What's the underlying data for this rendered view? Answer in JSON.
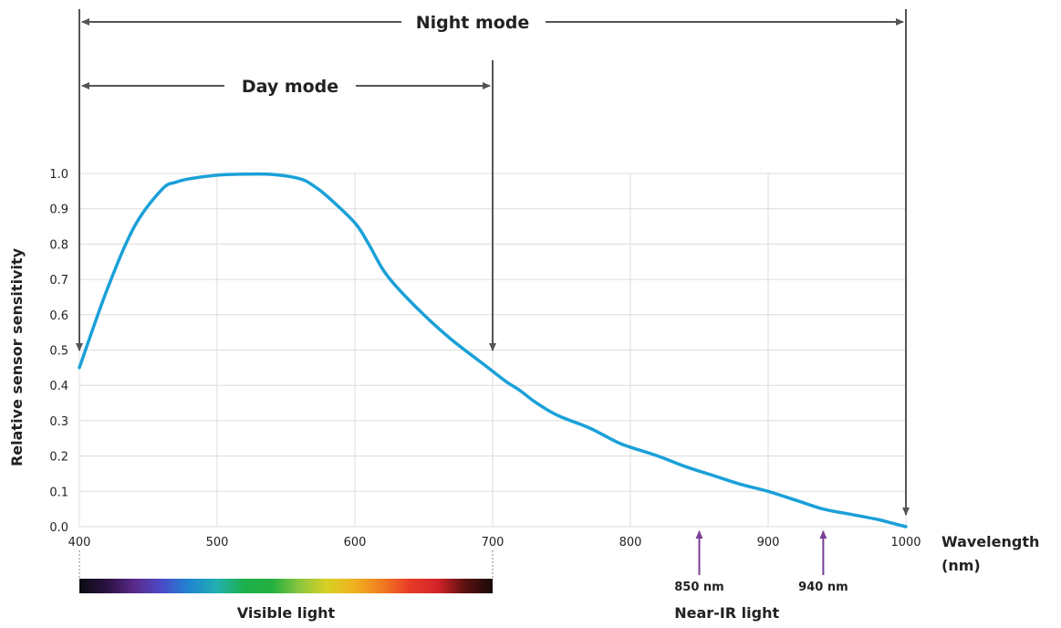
{
  "chart_data": {
    "type": "line",
    "xlabel": [
      "Wavelength",
      "(nm)"
    ],
    "ylabel": "Relative sensor sensitivity",
    "xlim": [
      400,
      1000
    ],
    "ylim": [
      0,
      1.0
    ],
    "xticks": [
      400,
      500,
      600,
      700,
      800,
      900,
      1000
    ],
    "yticks": [
      "0.0",
      "0.1",
      "0.2",
      "0.3",
      "0.4",
      "0.5",
      "0.6",
      "0.7",
      "0.8",
      "0.9",
      "1.0"
    ],
    "grid": true,
    "series_color": "#1aa0d8",
    "series": [
      {
        "x": [
          400,
          420,
          440,
          460,
          470,
          480,
          500,
          520,
          540,
          560,
          570,
          580,
          600,
          610,
          620,
          630,
          650,
          670,
          690,
          700,
          710,
          720,
          730,
          740,
          750,
          770,
          790,
          800,
          820,
          840,
          860,
          880,
          900,
          920,
          940,
          960,
          980,
          990,
          1000
        ],
        "y": [
          0.45,
          0.67,
          0.85,
          0.955,
          0.975,
          0.985,
          0.995,
          0.998,
          0.997,
          0.985,
          0.965,
          0.935,
          0.86,
          0.8,
          0.73,
          0.68,
          0.6,
          0.53,
          0.47,
          0.44,
          0.41,
          0.385,
          0.355,
          0.33,
          0.31,
          0.28,
          0.24,
          0.225,
          0.2,
          0.17,
          0.145,
          0.12,
          0.1,
          0.075,
          0.05,
          0.035,
          0.02,
          0.01,
          0.0
        ]
      }
    ],
    "annotations": {
      "night_mode": {
        "label": "Night mode",
        "from": 400,
        "to": 1000
      },
      "day_mode": {
        "label": "Day mode",
        "from": 400,
        "to": 700
      },
      "ir_markers": [
        {
          "x": 850,
          "label": "850 nm"
        },
        {
          "x": 940,
          "label": "940 nm"
        }
      ],
      "marker_color": "#7b3f96",
      "arrow_color": "#555555",
      "regions": [
        {
          "label": "Visible light",
          "from": 400,
          "to": 700
        },
        {
          "label": "Near-IR light",
          "from": 800,
          "to": 940
        }
      ],
      "spectrum_colors": [
        "#0c0c14",
        "#2a1240",
        "#5a2a8a",
        "#4b4bc8",
        "#1f86d0",
        "#22b0b0",
        "#1db04a",
        "#24b040",
        "#8cc63e",
        "#d8d023",
        "#f0b020",
        "#f07a20",
        "#e83a26",
        "#d4232a",
        "#5a1010",
        "#1a0a0a"
      ]
    }
  }
}
